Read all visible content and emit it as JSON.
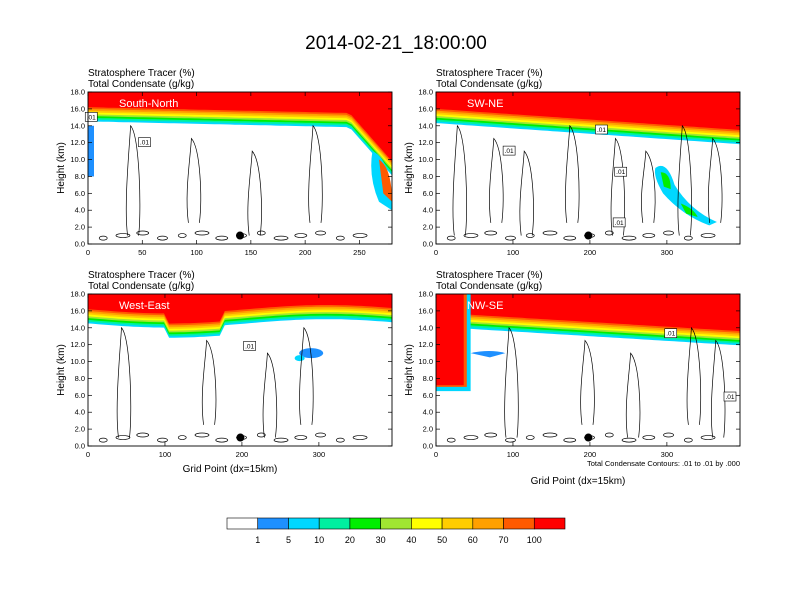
{
  "title": "2014-02-21_18:00:00",
  "colors": {
    "levels": [
      "#ffffff",
      "#1e90ff",
      "#00d7ff",
      "#00f0a0",
      "#00ee00",
      "#a0e632",
      "#ffff00",
      "#ffcd00",
      "#ffa000",
      "#ff5a00",
      "#ff0000"
    ]
  },
  "chart_data": [
    {
      "type": "heatmap",
      "panel_label": "South-North",
      "header": [
        "Stratosphere Tracer   (%)",
        "Total Condensate   (g/kg)"
      ],
      "ylabel": "Height (km)",
      "xlabel": "",
      "xlim": [
        0,
        280
      ],
      "ylim": [
        0,
        18
      ],
      "xticks": [
        0,
        50,
        100,
        150,
        200,
        250
      ],
      "yticks": [
        "0.0",
        "2.0",
        "4.0",
        "6.0",
        "8.0",
        "10.0",
        "12.0",
        "14.0",
        "16.0",
        "18.0"
      ],
      "contour_labels": [
        {
          "x": 3,
          "y": 15,
          "text": ".01"
        },
        {
          "x": 52,
          "y": 12,
          "text": ".01"
        }
      ],
      "marker": {
        "x": 140,
        "y": 1.0
      }
    },
    {
      "type": "heatmap",
      "panel_label": "SW-NE",
      "header": [
        "Stratosphere Tracer   (%)",
        "Total Condensate   (g/kg)"
      ],
      "ylabel": "Height (km)",
      "xlabel": "",
      "xlim": [
        0,
        395
      ],
      "ylim": [
        0,
        18
      ],
      "xticks": [
        0,
        100,
        200,
        300
      ],
      "yticks": [
        "0.0",
        "2.0",
        "4.0",
        "6.0",
        "8.0",
        "10.0",
        "12.0",
        "14.0",
        "16.0",
        "18.0"
      ],
      "contour_labels": [
        {
          "x": 215,
          "y": 13.5,
          "text": ".01"
        },
        {
          "x": 95,
          "y": 11,
          "text": ".01"
        },
        {
          "x": 240,
          "y": 8.5,
          "text": ".01"
        },
        {
          "x": 238,
          "y": 2.5,
          "text": ".01"
        }
      ],
      "marker": {
        "x": 198,
        "y": 1.0
      }
    },
    {
      "type": "heatmap",
      "panel_label": "West-East",
      "header": [
        "Stratosphere Tracer   (%)",
        "Total Condensate   (g/kg)"
      ],
      "ylabel": "Height (km)",
      "xlabel": "Grid Point (dx=15km)",
      "xlim": [
        0,
        395
      ],
      "ylim": [
        0,
        18
      ],
      "xticks": [
        0,
        100,
        200,
        300
      ],
      "yticks": [
        "0.0",
        "2.0",
        "4.0",
        "6.0",
        "8.0",
        "10.0",
        "12.0",
        "14.0",
        "16.0",
        "18.0"
      ],
      "contour_labels": [
        {
          "x": 210,
          "y": 11.8,
          "text": ".01"
        }
      ],
      "marker": {
        "x": 198,
        "y": 1.0
      }
    },
    {
      "type": "heatmap",
      "panel_label": "NW-SE",
      "header": [
        "Stratosphere Tracer   (%)",
        "Total Condensate   (g/kg)"
      ],
      "ylabel": "Height (km)",
      "xlabel": "Grid Point (dx=15km)",
      "note": "Total Condensate Contours: .01 to .01 by .000",
      "xlim": [
        0,
        395
      ],
      "ylim": [
        0,
        18
      ],
      "xticks": [
        0,
        100,
        200,
        300
      ],
      "yticks": [
        "0.0",
        "2.0",
        "4.0",
        "6.0",
        "8.0",
        "10.0",
        "12.0",
        "14.0",
        "16.0",
        "18.0"
      ],
      "contour_labels": [
        {
          "x": 305,
          "y": 13.3,
          "text": ".01"
        },
        {
          "x": 382,
          "y": 5.8,
          "text": ".01"
        }
      ],
      "marker": {
        "x": 198,
        "y": 1.0
      }
    }
  ],
  "colorbar": {
    "labels": [
      "1",
      "5",
      "10",
      "20",
      "30",
      "40",
      "50",
      "60",
      "70",
      "100"
    ]
  }
}
